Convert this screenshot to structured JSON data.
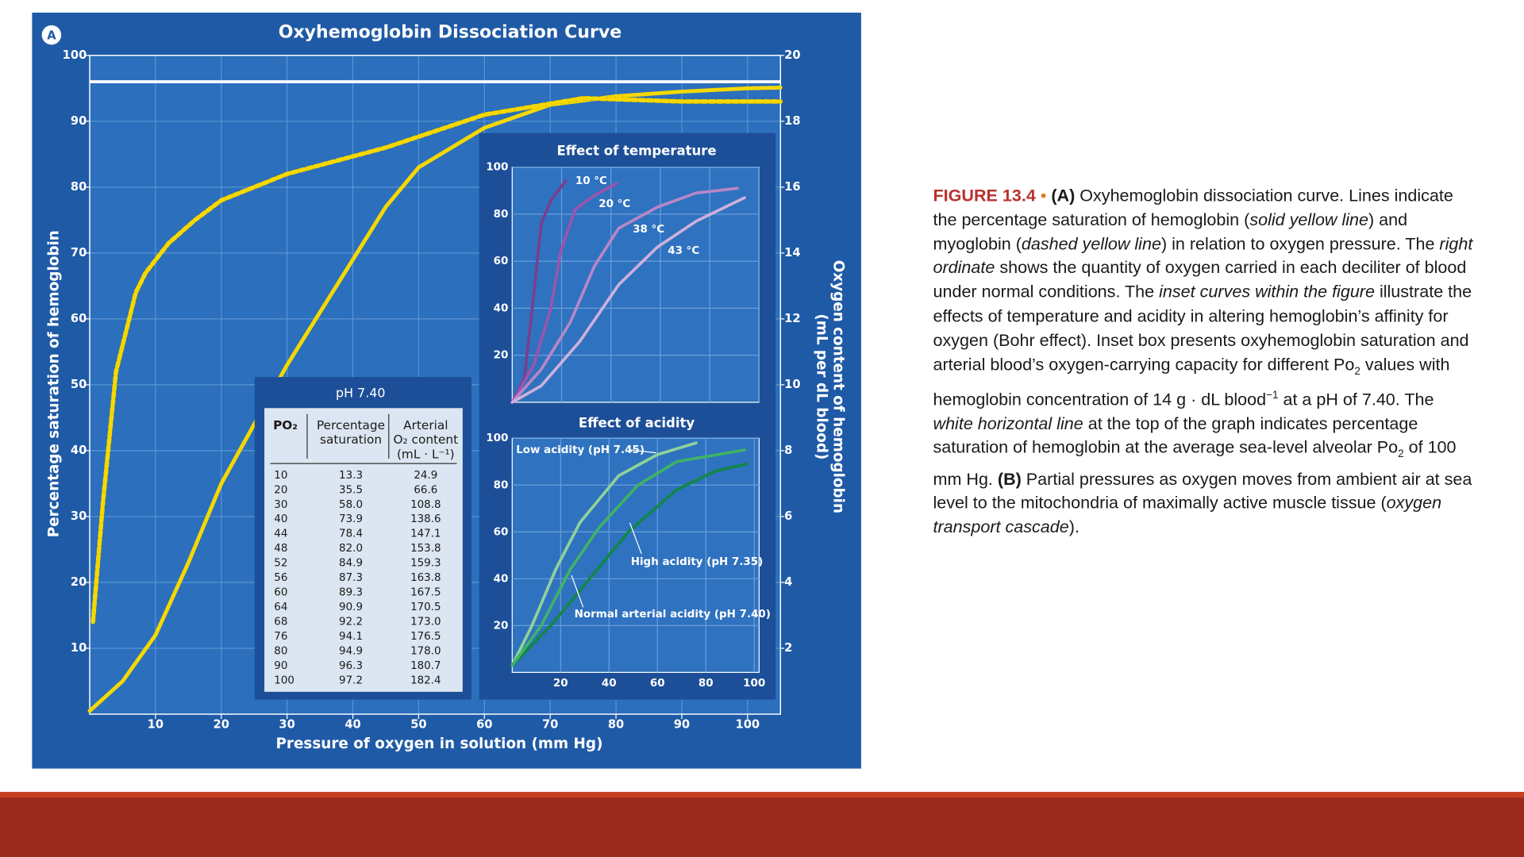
{
  "chart_data": [
    {
      "type": "line",
      "title": "Oxyhemoglobin Dissociation Curve",
      "panel_label": "A",
      "xlabel": "Pressure of oxygen in solution (mm Hg)",
      "ylabel": "Percentage saturation of hemoglobin",
      "y2label": [
        "Oxygen content of hemoglobin",
        "(mL per dL blood)"
      ],
      "xlim": [
        0,
        105
      ],
      "xticks": [
        10,
        20,
        30,
        40,
        50,
        60,
        70,
        80,
        90,
        100
      ],
      "ylim": [
        0,
        100
      ],
      "yticks": [
        10,
        20,
        30,
        40,
        50,
        60,
        70,
        80,
        90,
        100
      ],
      "y2lim": [
        0,
        20
      ],
      "y2ticks": [
        2,
        4,
        6,
        8,
        10,
        12,
        14,
        16,
        18,
        20
      ],
      "grid": true,
      "hline": 96,
      "hline_color": "#ffffff",
      "series": [
        {
          "color": "#f5d800",
          "style": "solid",
          "x": [
            0,
            5,
            10,
            15,
            20,
            25,
            30,
            35,
            40,
            45,
            50,
            60,
            70,
            80,
            90,
            100,
            105
          ],
          "values": [
            0.5,
            5,
            12,
            23,
            35,
            44,
            53,
            61,
            69,
            77,
            83,
            89,
            92.5,
            93.8,
            94.5,
            95,
            95.1
          ]
        },
        {
          "color": "#f5d800",
          "style": "dashed",
          "x": [
            0.5,
            2,
            4,
            7,
            8.5,
            12,
            16,
            20,
            30,
            45,
            60,
            75,
            90,
            105
          ],
          "values": [
            14,
            32,
            52,
            64,
            67,
            71.5,
            75,
            78,
            82,
            86,
            91,
            93.5,
            93,
            93
          ]
        }
      ]
    },
    {
      "type": "line",
      "title": "Effect of temperature",
      "xlim": [
        0,
        102
      ],
      "ylim": [
        0,
        100
      ],
      "yticks": [
        20,
        40,
        60,
        80,
        100
      ],
      "grid": true,
      "series": [
        {
          "name": "10 °C",
          "color": "#7a3d8f",
          "x": [
            0,
            5,
            9,
            12,
            16,
            22
          ],
          "values": [
            0,
            10,
            47,
            76,
            86,
            94
          ]
        },
        {
          "name": "20 °C",
          "color": "#9a55ad",
          "x": [
            0,
            9,
            16,
            20,
            26,
            34,
            43
          ],
          "values": [
            0,
            16,
            40,
            64,
            82,
            88,
            93
          ]
        },
        {
          "name": "38 °C",
          "color": "#b787c9",
          "x": [
            0,
            12,
            24,
            34,
            44,
            60,
            76,
            93
          ],
          "values": [
            0,
            14,
            34,
            58,
            74,
            83,
            89,
            91
          ]
        },
        {
          "name": "43 °C",
          "color": "#cdb0dd",
          "x": [
            0,
            12,
            28,
            44,
            60,
            76,
            96
          ],
          "values": [
            0,
            7,
            26,
            50,
            66,
            77,
            87
          ]
        }
      ]
    },
    {
      "type": "line",
      "title": "Effect of acidity",
      "xlim": [
        0,
        102
      ],
      "xticks": [
        20,
        40,
        60,
        80,
        100
      ],
      "ylim": [
        0,
        100
      ],
      "yticks": [
        20,
        40,
        60,
        80,
        100
      ],
      "grid": true,
      "series": [
        {
          "name": "Low acidity (pH 7.45)",
          "color": "#8fd19a",
          "x": [
            0,
            8,
            18,
            28,
            44,
            60,
            76
          ],
          "values": [
            3,
            19.6,
            44,
            64,
            84,
            93,
            98
          ]
        },
        {
          "name": "High acidity (pH 7.35)",
          "color": "#12864a",
          "x": [
            0,
            16,
            32,
            48,
            68,
            84,
            97
          ],
          "values": [
            3,
            20,
            40,
            60,
            78,
            86,
            89
          ]
        },
        {
          "name": "Normal arterial acidity (pH 7.40)",
          "color": "#3fb266",
          "x": [
            0,
            12,
            24,
            36,
            52,
            68,
            96
          ],
          "values": [
            3,
            20,
            44,
            62,
            80,
            90,
            95
          ]
        }
      ]
    }
  ],
  "table": {
    "title": "pH 7.40",
    "headers": [
      [
        "PO₂"
      ],
      [
        "Percentage",
        "saturation"
      ],
      [
        "Arterial",
        "O₂ content",
        "(mL · L⁻¹)"
      ]
    ],
    "rows": [
      [
        "10",
        "13.3",
        "24.9"
      ],
      [
        "20",
        "35.5",
        "66.6"
      ],
      [
        "30",
        "58.0",
        "108.8"
      ],
      [
        "40",
        "73.9",
        "138.6"
      ],
      [
        "44",
        "78.4",
        "147.1"
      ],
      [
        "48",
        "82.0",
        "153.8"
      ],
      [
        "52",
        "84.9",
        "159.3"
      ],
      [
        "56",
        "87.3",
        "163.8"
      ],
      [
        "60",
        "89.3",
        "167.5"
      ],
      [
        "64",
        "90.9",
        "170.5"
      ],
      [
        "68",
        "92.2",
        "173.0"
      ],
      [
        "76",
        "94.1",
        "176.5"
      ],
      [
        "80",
        "94.9",
        "178.0"
      ],
      [
        "90",
        "96.3",
        "180.7"
      ],
      [
        "100",
        "97.2",
        "182.4"
      ]
    ]
  },
  "caption": {
    "parts": [
      "FIGURE 13.4",
      "•",
      "(A)",
      " Oxyhemoglobin dissociation curve. Lines indicate the percentage saturation of hemoglobin (",
      "solid yellow line",
      ") and myoglobin (",
      "dashed yellow line",
      ") in relation to oxygen pressure. The ",
      "right ordinate",
      " shows the quantity of oxygen carried in each deciliter of blood under normal conditions. The ",
      "inset curves within the figure",
      " illustrate the effects of temperature and acidity in altering hemoglobin’s affinity for oxygen (Bohr effect). Inset box presents oxyhemoglobin saturation and arterial blood’s oxygen-carrying capacity for different Po",
      "2",
      " values with hemoglobin concentration of 14 g · dL blood",
      "−1",
      " at a pH of 7.40. The ",
      "white horizontal line",
      " at the top of the graph indicates percentage saturation of hemoglobin at the average sea-level alveolar Po",
      "2",
      " of 100 mm Hg. ",
      "(B)",
      " Partial pressures as oxygen moves from ambient air at sea level to the mitochondria of maximally active muscle tissue (",
      "oxygen transport cascade",
      ")."
    ]
  }
}
